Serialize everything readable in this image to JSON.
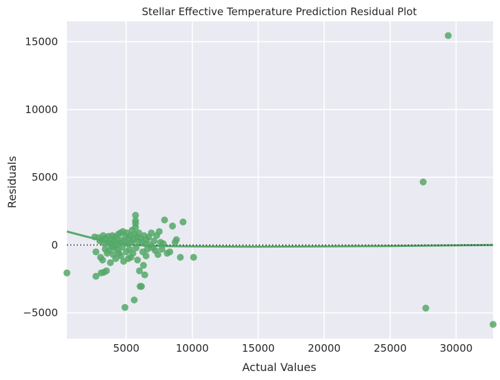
{
  "chart_data": {
    "type": "scatter",
    "title": "Stellar Effective Temperature Prediction Residual Plot",
    "xlabel": "Actual Values",
    "ylabel": "Residuals",
    "xlim": [
      500,
      32800
    ],
    "ylim": [
      -6900,
      16500
    ],
    "x_ticks": [
      5000,
      10000,
      15000,
      20000,
      25000,
      30000
    ],
    "y_ticks": [
      -5000,
      0,
      5000,
      10000,
      15000
    ],
    "y_tick_labels": [
      "−5000",
      "0",
      "5000",
      "10000",
      "15000"
    ],
    "grid": true,
    "background": "#eaeaf2",
    "point_color": "#55a868",
    "reference_line": {
      "y": 0,
      "style": "dotted",
      "color": "#262626"
    },
    "trend_line": {
      "color": "#55a868",
      "points": [
        [
          500,
          1000
        ],
        [
          2000,
          620
        ],
        [
          3500,
          280
        ],
        [
          5000,
          60
        ],
        [
          6500,
          -40
        ],
        [
          8000,
          -80
        ],
        [
          10000,
          -100
        ],
        [
          15000,
          -120
        ],
        [
          20000,
          -100
        ],
        [
          25000,
          -70
        ],
        [
          30000,
          -20
        ],
        [
          32800,
          10
        ]
      ]
    },
    "points": [
      [
        500,
        -2050
      ],
      [
        2600,
        600
      ],
      [
        2700,
        -500
      ],
      [
        2700,
        -2300
      ],
      [
        2900,
        550
      ],
      [
        3000,
        300
      ],
      [
        3050,
        -900
      ],
      [
        3100,
        -2050
      ],
      [
        3150,
        400
      ],
      [
        3200,
        -1100
      ],
      [
        3250,
        700
      ],
      [
        3300,
        -2000
      ],
      [
        3350,
        100
      ],
      [
        3400,
        -300
      ],
      [
        3450,
        500
      ],
      [
        3500,
        -1900
      ],
      [
        3550,
        -600
      ],
      [
        3600,
        200
      ],
      [
        3650,
        650
      ],
      [
        3700,
        -400
      ],
      [
        3750,
        100
      ],
      [
        3800,
        -1300
      ],
      [
        3850,
        400
      ],
      [
        3900,
        -100
      ],
      [
        3950,
        700
      ],
      [
        4000,
        -700
      ],
      [
        4050,
        300
      ],
      [
        4100,
        -200
      ],
      [
        4150,
        600
      ],
      [
        4200,
        -1000
      ],
      [
        4250,
        0
      ],
      [
        4300,
        450
      ],
      [
        4350,
        -350
      ],
      [
        4400,
        800
      ],
      [
        4450,
        -600
      ],
      [
        4500,
        150
      ],
      [
        4550,
        900
      ],
      [
        4600,
        -800
      ],
      [
        4650,
        350
      ],
      [
        4700,
        -150
      ],
      [
        4750,
        1000
      ],
      [
        4800,
        -1200
      ],
      [
        4850,
        250
      ],
      [
        4900,
        -4600
      ],
      [
        4950,
        600
      ],
      [
        5000,
        -500
      ],
      [
        5050,
        900
      ],
      [
        5100,
        100
      ],
      [
        5150,
        -1000
      ],
      [
        5200,
        500
      ],
      [
        5250,
        -300
      ],
      [
        5300,
        700
      ],
      [
        5350,
        -900
      ],
      [
        5400,
        200
      ],
      [
        5450,
        1100
      ],
      [
        5500,
        -600
      ],
      [
        5550,
        400
      ],
      [
        5600,
        -4050
      ],
      [
        5650,
        800
      ],
      [
        5700,
        1300
      ],
      [
        5700,
        1800
      ],
      [
        5700,
        2200
      ],
      [
        5700,
        1600
      ],
      [
        5750,
        -200
      ],
      [
        5800,
        600
      ],
      [
        5850,
        -1100
      ],
      [
        5900,
        300
      ],
      [
        5950,
        900
      ],
      [
        6000,
        -1900
      ],
      [
        6050,
        -3050
      ],
      [
        6100,
        500
      ],
      [
        6150,
        -3050
      ],
      [
        6200,
        200
      ],
      [
        6250,
        -500
      ],
      [
        6300,
        -1500
      ],
      [
        6350,
        700
      ],
      [
        6400,
        -2200
      ],
      [
        6450,
        100
      ],
      [
        6500,
        -800
      ],
      [
        6550,
        400
      ],
      [
        6600,
        -300
      ],
      [
        6700,
        600
      ],
      [
        6800,
        0
      ],
      [
        6900,
        900
      ],
      [
        7000,
        -200
      ],
      [
        7100,
        300
      ],
      [
        7200,
        -400
      ],
      [
        7300,
        700
      ],
      [
        7400,
        -700
      ],
      [
        7500,
        1000
      ],
      [
        7600,
        200
      ],
      [
        7700,
        -300
      ],
      [
        7800,
        100
      ],
      [
        7900,
        1850
      ],
      [
        8100,
        -600
      ],
      [
        8300,
        -500
      ],
      [
        8500,
        1400
      ],
      [
        8700,
        200
      ],
      [
        8800,
        400
      ],
      [
        9100,
        -900
      ],
      [
        9300,
        1700
      ],
      [
        10100,
        -900
      ],
      [
        27500,
        4650
      ],
      [
        27700,
        -4650
      ],
      [
        29400,
        15450
      ],
      [
        32800,
        -5850
      ]
    ]
  }
}
